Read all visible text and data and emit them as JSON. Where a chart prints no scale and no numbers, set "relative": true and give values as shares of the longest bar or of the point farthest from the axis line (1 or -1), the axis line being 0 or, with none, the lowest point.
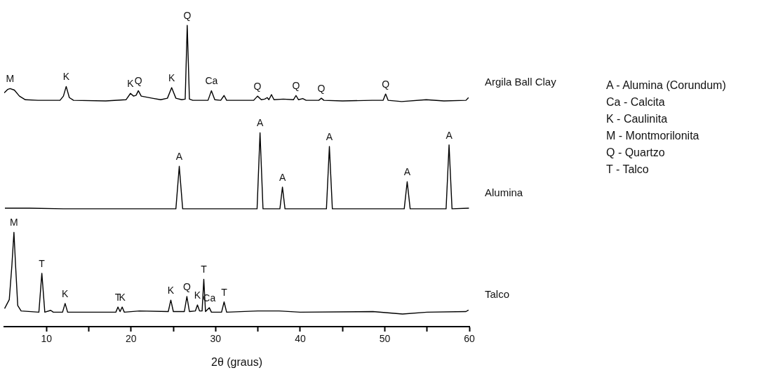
{
  "chart_data": {
    "type": "line",
    "relative": true,
    "xlabel": "2θ (graus)",
    "xlim": [
      5,
      60
    ],
    "xticks": [
      10,
      {
        "value": 15,
        "label": null
      },
      20,
      {
        "value": 25,
        "label": null
      },
      30,
      {
        "value": 35,
        "label": null
      },
      40,
      {
        "value": 45,
        "label": null
      },
      50,
      {
        "value": 55,
        "label": null
      },
      60
    ],
    "grid": false,
    "legend": false,
    "series": [
      {
        "name": "Argila Ball Clay",
        "color": "#000000",
        "x": [
          5.0,
          5.4,
          5.7,
          6.2,
          6.8,
          7.5,
          9,
          11.6,
          12.0,
          12.33,
          12.7,
          13.2,
          17,
          19.4,
          19.93,
          20.3,
          20.6,
          20.86,
          21.2,
          22.5,
          23.5,
          24.3,
          24.8,
          25.3,
          26.0,
          26.4,
          26.64,
          26.9,
          27.3,
          29.1,
          29.5,
          29.9,
          30.6,
          31.0,
          31.3,
          34.5,
          34.95,
          35.4,
          35.8,
          36.1,
          36.3,
          36.6,
          36.9,
          38.0,
          39.2,
          39.5,
          39.8,
          40.3,
          40.7,
          42.2,
          42.5,
          42.8,
          45,
          48.5,
          49.8,
          50.1,
          50.4,
          52,
          54.9,
          57,
          59.6,
          59.9
        ],
        "values": [
          0.776,
          0.787,
          0.79,
          0.785,
          0.765,
          0.753,
          0.751,
          0.751,
          0.765,
          0.797,
          0.76,
          0.751,
          0.749,
          0.753,
          0.774,
          0.765,
          0.768,
          0.783,
          0.765,
          0.758,
          0.753,
          0.758,
          0.793,
          0.758,
          0.753,
          0.755,
          1.0,
          0.755,
          0.751,
          0.751,
          0.783,
          0.753,
          0.751,
          0.767,
          0.751,
          0.751,
          0.765,
          0.753,
          0.755,
          0.76,
          0.753,
          0.77,
          0.753,
          0.755,
          0.753,
          0.767,
          0.753,
          0.757,
          0.751,
          0.751,
          0.758,
          0.751,
          0.749,
          0.751,
          0.751,
          0.772,
          0.751,
          0.747,
          0.753,
          0.749,
          0.751,
          0.76
        ]
      },
      {
        "name": "Alumina",
        "color": "#000000",
        "x": [
          5.08,
          8,
          12,
          25.3,
          25.7,
          26.1,
          34.9,
          35.25,
          35.6,
          37.6,
          37.9,
          38.2,
          43.1,
          43.45,
          43.8,
          52.3,
          52.65,
          53.0,
          57.25,
          57.6,
          57.95,
          59.95
        ],
        "values": [
          0.393,
          0.393,
          0.391,
          0.391,
          0.532,
          0.391,
          0.391,
          0.643,
          0.391,
          0.391,
          0.463,
          0.391,
          0.391,
          0.598,
          0.391,
          0.391,
          0.481,
          0.391,
          0.391,
          0.603,
          0.391,
          0.393
        ]
      },
      {
        "name": "Talco",
        "color": "#000000",
        "x": [
          5.05,
          5.6,
          5.9,
          6.15,
          6.35,
          6.6,
          7.0,
          9.1,
          9.45,
          9.8,
          10.5,
          10.8,
          11.9,
          12.2,
          12.5,
          18.2,
          18.45,
          18.7,
          18.95,
          19.2,
          21,
          24.4,
          24.7,
          25.0,
          26.3,
          26.6,
          26.9,
          27.6,
          27.85,
          28.1,
          28.4,
          28.6,
          28.8,
          29.25,
          29.5,
          30.7,
          31.0,
          31.3,
          35.0,
          37.5,
          40,
          48.6,
          52.1,
          55,
          59.6,
          59.9
        ],
        "values": [
          0.06,
          0.09,
          0.2,
          0.313,
          0.2,
          0.07,
          0.052,
          0.048,
          0.177,
          0.048,
          0.054,
          0.048,
          0.048,
          0.077,
          0.048,
          0.048,
          0.065,
          0.05,
          0.065,
          0.048,
          0.052,
          0.05,
          0.088,
          0.05,
          0.05,
          0.1,
          0.05,
          0.052,
          0.072,
          0.052,
          0.052,
          0.157,
          0.05,
          0.063,
          0.048,
          0.048,
          0.082,
          0.048,
          0.052,
          0.052,
          0.048,
          0.05,
          0.042,
          0.048,
          0.05,
          0.055
        ]
      }
    ],
    "annotations": [
      {
        "text": "M",
        "x": 5.7,
        "y": 0.79
      },
      {
        "text": "K",
        "x": 12.33,
        "y": 0.797
      },
      {
        "text": "K",
        "x": 19.93,
        "y": 0.774
      },
      {
        "text": "Q",
        "x": 20.86,
        "y": 0.783
      },
      {
        "text": "K",
        "x": 24.8,
        "y": 0.793
      },
      {
        "text": "Q",
        "x": 26.64,
        "y": 1.0
      },
      {
        "text": "Ca",
        "x": 29.5,
        "y": 0.783
      },
      {
        "text": "Q",
        "x": 34.95,
        "y": 0.765
      },
      {
        "text": "Q",
        "x": 39.5,
        "y": 0.767
      },
      {
        "text": "Q",
        "x": 42.5,
        "y": 0.758
      },
      {
        "text": "Q",
        "x": 50.1,
        "y": 0.772
      },
      {
        "text": "A",
        "x": 25.7,
        "y": 0.532
      },
      {
        "text": "A",
        "x": 35.25,
        "y": 0.643
      },
      {
        "text": "A",
        "x": 37.9,
        "y": 0.463
      },
      {
        "text": "A",
        "x": 43.45,
        "y": 0.598
      },
      {
        "text": "A",
        "x": 52.65,
        "y": 0.481
      },
      {
        "text": "A",
        "x": 57.6,
        "y": 0.603
      },
      {
        "text": "M",
        "x": 6.15,
        "y": 0.313
      },
      {
        "text": "T",
        "x": 9.45,
        "y": 0.177
      },
      {
        "text": "K",
        "x": 12.2,
        "y": 0.077
      },
      {
        "text": "T",
        "x": 18.45,
        "y": 0.065
      },
      {
        "text": "K",
        "x": 18.95,
        "y": 0.065
      },
      {
        "text": "K",
        "x": 24.7,
        "y": 0.088
      },
      {
        "text": "Q",
        "x": 26.6,
        "y": 0.1
      },
      {
        "text": "K",
        "x": 27.85,
        "y": 0.072
      },
      {
        "text": "T",
        "x": 28.6,
        "y": 0.157
      },
      {
        "text": "Ca",
        "x": 29.25,
        "y": 0.063
      },
      {
        "text": "T",
        "x": 31.0,
        "y": 0.082
      },
      "A - Alumina (Corundum)",
      "Ca - Calcita",
      "K - Caulinita",
      "M - Montmorilonita",
      "Q - Quartzo",
      "T - Talco"
    ]
  }
}
